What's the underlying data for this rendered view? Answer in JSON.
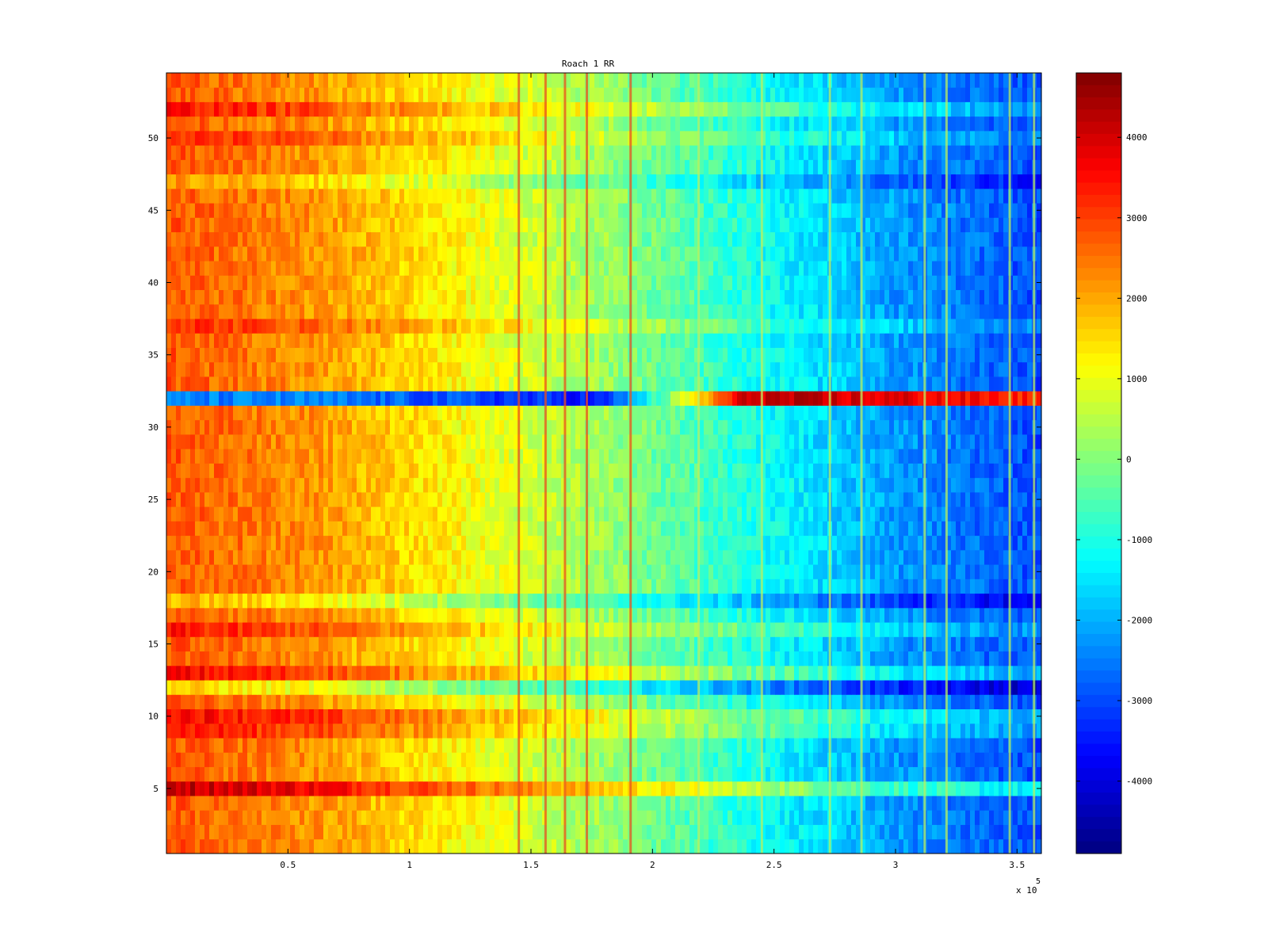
{
  "chart_data": {
    "type": "heatmap",
    "title": "Roach 1 RR",
    "xlabel": "",
    "ylabel": "",
    "x_multiplier_label": "x 10",
    "x_multiplier_exponent": "5",
    "xlim": [
      0,
      360000
    ],
    "ylim": [
      0.5,
      54.5
    ],
    "x_ticks": [
      50000,
      100000,
      150000,
      200000,
      250000,
      300000,
      350000
    ],
    "x_tick_labels": [
      "0.5",
      "1",
      "1.5",
      "2",
      "2.5",
      "3",
      "3.5"
    ],
    "y_ticks": [
      5,
      10,
      15,
      20,
      25,
      30,
      35,
      40,
      45,
      50
    ],
    "y_tick_labels": [
      "5",
      "10",
      "15",
      "20",
      "25",
      "30",
      "35",
      "40",
      "45",
      "50"
    ],
    "rows": 54,
    "colormap": "jet",
    "clim": [
      -4900,
      4800
    ],
    "colorbar": {
      "ticks": [
        4000,
        3000,
        2000,
        1000,
        0,
        -1000,
        -2000,
        -3000,
        -4000
      ],
      "tick_labels": [
        "4000",
        "3000",
        "2000",
        "1000",
        "0",
        "-1000",
        "-2000",
        "-3000",
        "-4000"
      ],
      "placement": "right"
    },
    "x_breakpoints": [
      0,
      60000,
      120000,
      180000,
      240000,
      300000,
      360000
    ],
    "value_profile_general": [
      2800,
      2200,
      1200,
      200,
      -1000,
      -2200,
      -3000
    ],
    "row_offsets": {
      "5": 1500,
      "9": 700,
      "10": 900,
      "12": -1200,
      "13": 800,
      "16": 600,
      "18": -900,
      "32": -5000,
      "37": 500,
      "47": -600,
      "50": 500,
      "52": 700
    },
    "row_32_profile": [
      -2500,
      -2500,
      -3000,
      -3500,
      4200,
      3800,
      3200
    ],
    "bright_vertical_lines": [
      145000.0,
      156000.0,
      164000.0,
      173000.0,
      191000.0,
      219000.0,
      245000.0,
      273000.0,
      286000.0,
      312000.0,
      321000.0,
      347000.0,
      357000.0
    ]
  }
}
